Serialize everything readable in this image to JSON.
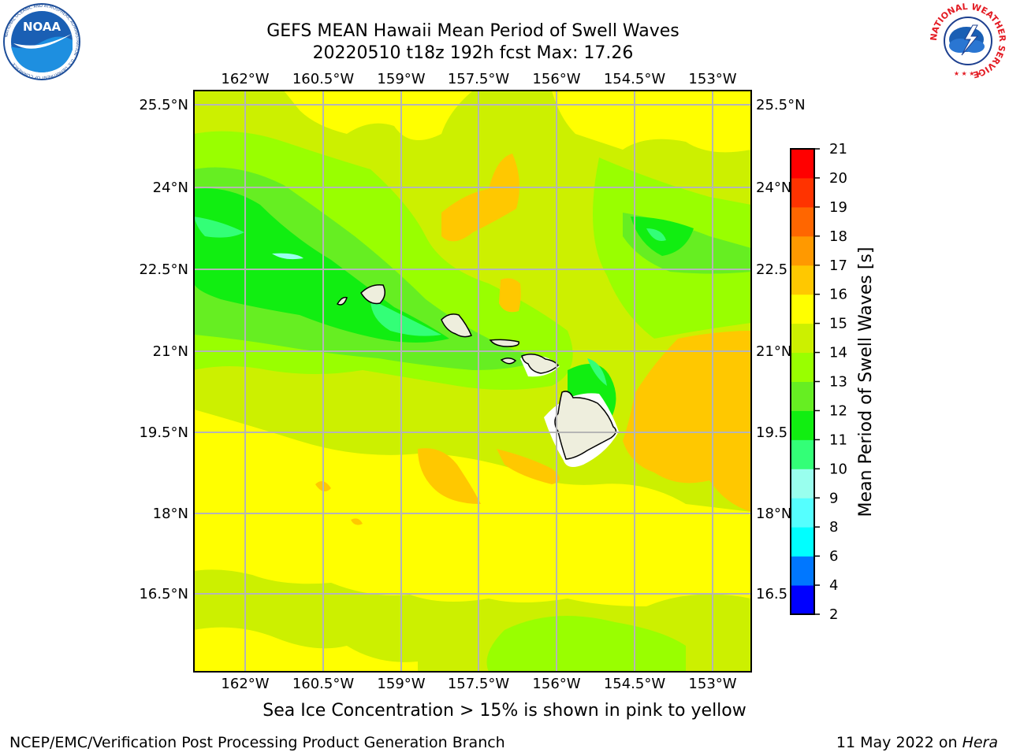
{
  "title": {
    "line1": "GEFS MEAN Hawaii Mean Period of Swell Waves",
    "line2": "20220510 t18z 192h fcst   Max: 17.26"
  },
  "logos": {
    "noaa_text": "NOAA",
    "noaa_ring": "NATIONAL OCEANIC AND ATMOSPHERIC ADMINISTRATION · U.S. DEPARTMENT OF COMMERCE",
    "nws_ring": "NATIONAL WEATHER SERVICE"
  },
  "map": {
    "lon_labels": [
      "162°W",
      "160.5°W",
      "159°W",
      "157.5°W",
      "156°W",
      "154.5°W",
      "153°W"
    ],
    "lat_labels": [
      "25.5°N",
      "24°N",
      "22.5°N",
      "21°N",
      "19.5°N",
      "18°N",
      "16.5°N"
    ],
    "right_lat_labels": [
      "25.5°N",
      "24°N",
      "22.5",
      "21°N",
      "19.5",
      "18°N",
      "16.5"
    ],
    "background_color": "#ccf000"
  },
  "colorbar": {
    "label": "Mean Period of Swell Waves [s]",
    "levels": [
      "2",
      "4",
      "6",
      "8",
      "9",
      "10",
      "11",
      "12",
      "13",
      "14",
      "15",
      "16",
      "17",
      "18",
      "19",
      "20",
      "21"
    ],
    "colors": [
      "#0000ff",
      "#0077ff",
      "#00ffff",
      "#55ffff",
      "#99ffee",
      "#33ff77",
      "#11ee11",
      "#66ee22",
      "#99ff00",
      "#ccf000",
      "#ffff00",
      "#ffc800",
      "#ff9900",
      "#ff6600",
      "#ff3300",
      "#ff0000"
    ]
  },
  "caption": "Sea Ice Concentration > 15% is shown in pink to yellow",
  "footer": {
    "left": "NCEP/EMC/Verification Post Processing Product Generation Branch",
    "date": "11 May 2022 on ",
    "host": "Hera"
  }
}
